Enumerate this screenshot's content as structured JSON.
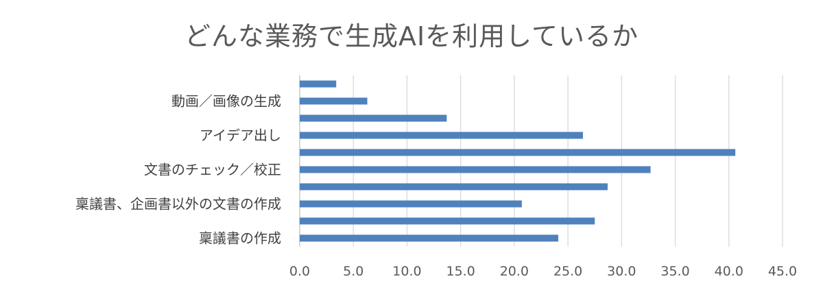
{
  "chart_data": {
    "type": "bar",
    "orientation": "horizontal",
    "title": "どんな業務で生成AIを利用しているか",
    "xlabel": "",
    "ylabel": "",
    "xlim": [
      0,
      45
    ],
    "x_ticks": [
      "0.0",
      "5.0",
      "10.0",
      "15.0",
      "20.0",
      "25.0",
      "30.0",
      "35.0",
      "40.0",
      "45.0"
    ],
    "grid": true,
    "legend": "none",
    "bar_color": "#4F81BD",
    "categories": [
      "",
      "動画／画像の生成",
      "",
      "アイデア出し",
      "",
      "文書のチェック／校正",
      "",
      "稟議書、企画書以外の文書の作成",
      "",
      "稟議書の作成"
    ],
    "values": [
      3.4,
      6.3,
      13.7,
      26.4,
      40.6,
      32.7,
      28.7,
      20.7,
      27.5,
      24.1
    ]
  }
}
